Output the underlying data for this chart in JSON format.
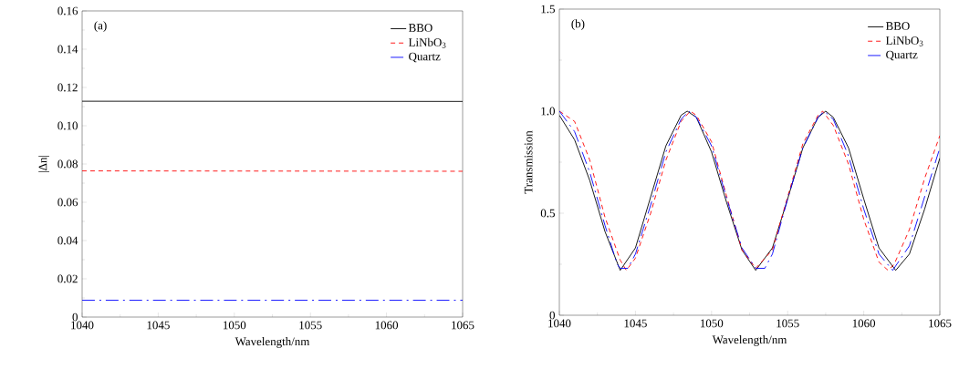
{
  "chart_data": [
    {
      "type": "line",
      "annotations": [
        "(a)"
      ],
      "xlabel": "Wavelength/nm",
      "ylabel": "|Δn|",
      "xlim": [
        1040,
        1065
      ],
      "xticks": [
        1040,
        1045,
        1050,
        1055,
        1060,
        1065
      ],
      "ylim": [
        0,
        0.16
      ],
      "yticks": [
        0,
        0.02,
        0.04,
        0.06,
        {
          "value": 0.08,
          "label": "0.08"
        },
        {
          "value": 0.1,
          "label": "0.10"
        },
        0.12,
        0.14,
        0.16
      ],
      "legend": "top right",
      "grid": false,
      "marker": "none",
      "series": [
        {
          "name": "BBO",
          "color": "#000000",
          "line_style": "solid",
          "x": [
            1040,
            1065
          ],
          "values": [
            0.1128,
            0.1127
          ]
        },
        {
          "name": "LiNbO$_{3}$",
          "color": "#ff0000",
          "line_style": "dashed",
          "x": [
            1040,
            1065
          ],
          "values": [
            0.0764,
            0.0762
          ]
        },
        {
          "name": "Quartz",
          "color": "#0000ff",
          "line_style": "dashdot",
          "x": [
            1040,
            1065
          ],
          "values": [
            0.0088,
            0.0088
          ]
        }
      ]
    },
    {
      "type": "line",
      "annotations": [
        "(b)"
      ],
      "xlabel": "Wavelength/nm",
      "ylabel": "Transmission",
      "xlim": [
        1040,
        1065
      ],
      "xticks": [
        1040,
        1045,
        1050,
        1055,
        1060,
        1065
      ],
      "ylim": [
        0,
        1.5
      ],
      "yticks": [
        0,
        0.5,
        {
          "value": 1,
          "label": "1.0"
        },
        1.5
      ],
      "legend": "top right",
      "grid": false,
      "marker": "none",
      "series": [
        {
          "name": "BBO",
          "color": "#000000",
          "line_style": "solid",
          "x": [
            1040,
            1041,
            1042,
            1043,
            1044,
            1045,
            1046,
            1047,
            1048,
            1048.4,
            1049,
            1050,
            1051,
            1052,
            1052.9,
            1054,
            1055,
            1056,
            1057,
            1057.5,
            1058,
            1059,
            1060,
            1061,
            1062.1,
            1063,
            1064,
            1065
          ],
          "values": [
            0.98,
            0.86,
            0.66,
            0.41,
            0.22,
            0.33,
            0.58,
            0.83,
            0.98,
            1.0,
            0.97,
            0.8,
            0.55,
            0.32,
            0.22,
            0.33,
            0.57,
            0.82,
            0.97,
            1.0,
            0.97,
            0.82,
            0.57,
            0.33,
            0.22,
            0.3,
            0.52,
            0.77
          ]
        },
        {
          "name": "LiNbO$_{3}$",
          "color": "#ff0000",
          "line_style": "dashed",
          "x": [
            1040,
            1041,
            1042,
            1043,
            1044,
            1044.4,
            1045,
            1046,
            1047,
            1048,
            1048.6,
            1049,
            1050,
            1051,
            1052,
            1052.9,
            1054,
            1055,
            1056,
            1057,
            1057.3,
            1058,
            1059,
            1060,
            1061,
            1061.6,
            1062,
            1063,
            1064,
            1065
          ],
          "values": [
            1.0,
            0.95,
            0.76,
            0.48,
            0.27,
            0.22,
            0.28,
            0.5,
            0.76,
            0.95,
            1.0,
            0.98,
            0.85,
            0.58,
            0.32,
            0.23,
            0.32,
            0.58,
            0.84,
            0.98,
            1.0,
            0.93,
            0.74,
            0.47,
            0.26,
            0.22,
            0.25,
            0.42,
            0.67,
            0.88
          ]
        },
        {
          "name": "Quartz",
          "color": "#0000ff",
          "line_style": "dashdot",
          "x": [
            1040,
            1041,
            1042,
            1043,
            1043.8,
            1044,
            1044.5,
            1045,
            1046,
            1047,
            1048,
            1048.5,
            1049,
            1050,
            1051,
            1052,
            1052.9,
            1053.5,
            1054,
            1055,
            1056,
            1057,
            1057.4,
            1058,
            1059,
            1060,
            1061,
            1061.9,
            1063,
            1064,
            1065
          ],
          "values": [
            1.0,
            0.9,
            0.7,
            0.44,
            0.25,
            0.23,
            0.23,
            0.3,
            0.54,
            0.8,
            0.96,
            1.0,
            0.97,
            0.83,
            0.57,
            0.33,
            0.23,
            0.23,
            0.3,
            0.57,
            0.82,
            0.97,
            1.0,
            0.96,
            0.78,
            0.52,
            0.3,
            0.22,
            0.34,
            0.58,
            0.82
          ]
        }
      ]
    }
  ]
}
